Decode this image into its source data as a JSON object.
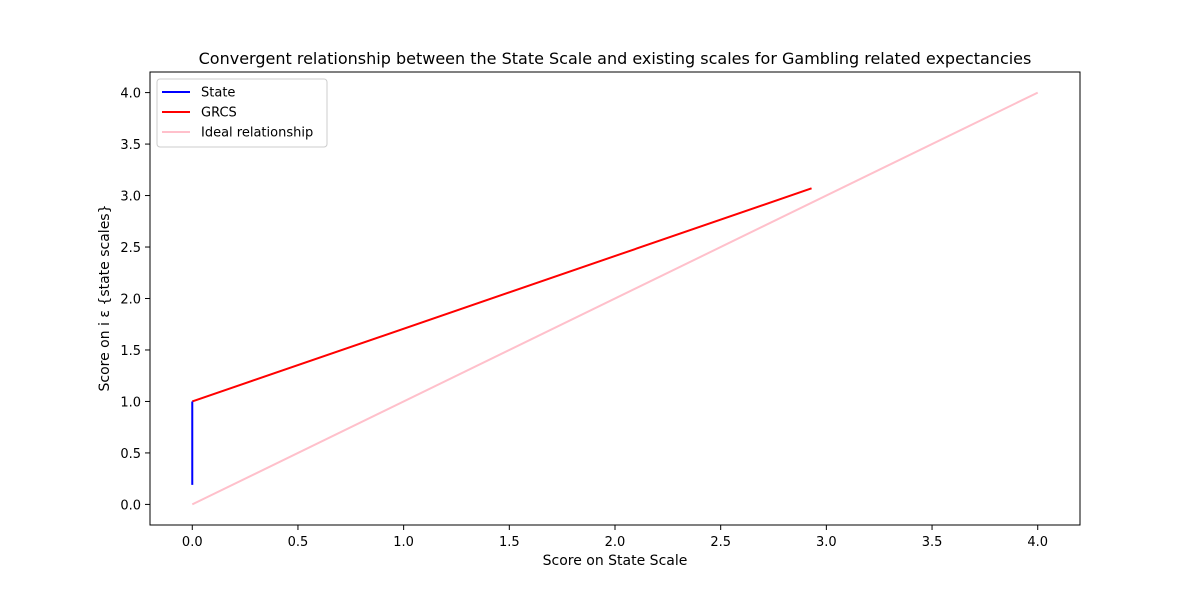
{
  "chart_data": {
    "type": "line",
    "title": "Convergent relationship between the State Scale and existing scales for Gambling related expectancies",
    "xlabel": "Score on State Scale",
    "ylabel": "Score on i ε {state scales}",
    "xlim": [
      -0.2,
      4.2
    ],
    "ylim": [
      -0.2,
      4.2
    ],
    "xticks": [
      0.0,
      0.5,
      1.0,
      1.5,
      2.0,
      2.5,
      3.0,
      3.5,
      4.0
    ],
    "yticks": [
      0.0,
      0.5,
      1.0,
      1.5,
      2.0,
      2.5,
      3.0,
      3.5,
      4.0
    ],
    "xtick_labels": [
      "0.0",
      "0.5",
      "1.0",
      "1.5",
      "2.0",
      "2.5",
      "3.0",
      "3.5",
      "4.0"
    ],
    "ytick_labels": [
      "0.0",
      "0.5",
      "1.0",
      "1.5",
      "2.0",
      "2.5",
      "3.0",
      "3.5",
      "4.0"
    ],
    "grid": false,
    "legend_position": "top-left",
    "series": [
      {
        "name": "State",
        "color": "#0000ff",
        "x": [
          0.0,
          0.0
        ],
        "y": [
          0.19,
          1.0
        ]
      },
      {
        "name": "GRCS",
        "color": "#ff0000",
        "x": [
          0.0,
          2.93
        ],
        "y": [
          1.0,
          3.07
        ]
      },
      {
        "name": "Ideal relationship",
        "color": "#ffc0cb",
        "x": [
          0.0,
          4.0
        ],
        "y": [
          0.0,
          4.0
        ]
      }
    ]
  }
}
